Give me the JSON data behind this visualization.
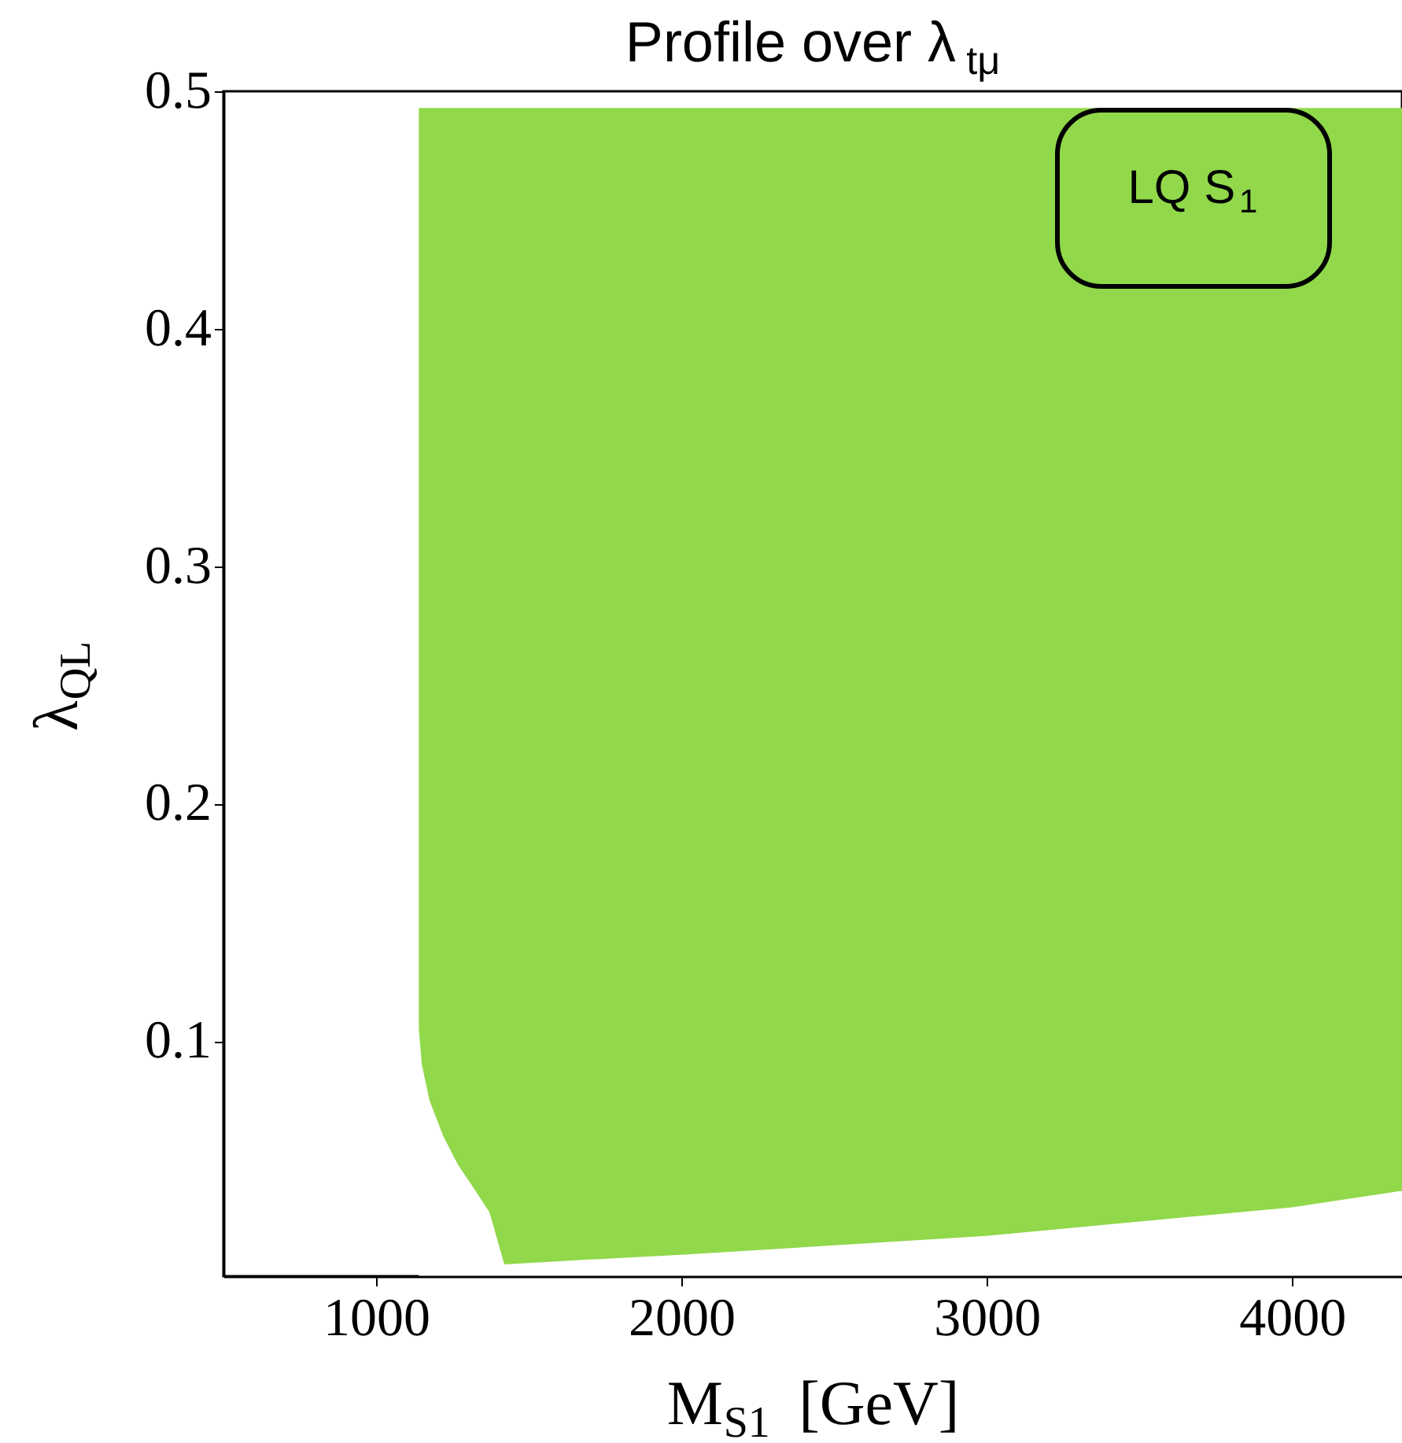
{
  "chart_data": {
    "type": "area",
    "stacked": true,
    "title": "Profile over λ$_{tμ}$",
    "xlabel": "M$_{S1}$ [GeV]",
    "ylabel": "λ$_{QL}$",
    "annotations": [
      "LQ S$_{1}$"
    ],
    "xlim": [
      500,
      4360
    ],
    "ylim": [
      0.001,
      0.5
    ],
    "xticks": [
      1000,
      2000,
      3000,
      4000
    ],
    "yticks": [
      0.1,
      0.2,
      0.3,
      0.4,
      0.5
    ],
    "grid": false,
    "legend": false,
    "x": [
      1140,
      1150,
      1175,
      1220,
      1268,
      1320,
      1371,
      1400,
      1420,
      1700,
      2000,
      2500,
      3000,
      3500,
      4000,
      4360
    ],
    "series": [
      {
        "color": "#ffffff",
        "values": [
          0.105,
          0.09,
          0.075,
          0.06,
          0.048,
          0.038,
          0.028,
          0.015,
          0.006,
          0.008,
          0.01,
          0.014,
          0.018,
          0.024,
          0.03,
          0.037
        ]
      },
      {
        "color": "#91d84a",
        "values": [
          0.388,
          0.403,
          0.418,
          0.433,
          0.445,
          0.455,
          0.465,
          0.478,
          0.487,
          0.485,
          0.483,
          0.479,
          0.475,
          0.469,
          0.463,
          0.456
        ]
      }
    ]
  }
}
